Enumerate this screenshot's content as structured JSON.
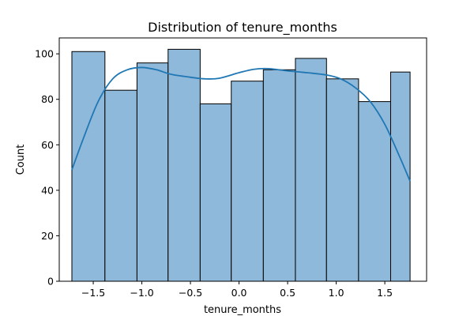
{
  "chart_data": {
    "type": "bar",
    "title": "Distribution of tenure_months",
    "xlabel": "tenure_months",
    "ylabel": "Count",
    "xlim": [
      -1.85,
      1.93
    ],
    "ylim": [
      0,
      107
    ],
    "bin_edges": [
      -1.72,
      -1.38,
      -1.05,
      -0.73,
      -0.4,
      -0.08,
      0.25,
      0.58,
      0.9,
      1.23,
      1.56,
      1.76
    ],
    "values": [
      101,
      84,
      96,
      102,
      78,
      88,
      93,
      98,
      89,
      79,
      92
    ],
    "kde": {
      "x": [
        -1.72,
        -1.6,
        -1.45,
        -1.3,
        -1.15,
        -1.0,
        -0.85,
        -0.7,
        -0.5,
        -0.35,
        -0.2,
        0.0,
        0.15,
        0.3,
        0.5,
        0.7,
        0.9,
        1.05,
        1.2,
        1.35,
        1.5,
        1.65,
        1.76
      ],
      "y": [
        49,
        63,
        79,
        89,
        93,
        94,
        93,
        91,
        89.7,
        89,
        89.3,
        91.7,
        93.2,
        93.5,
        92.5,
        91.7,
        90.7,
        88.9,
        85,
        79,
        69,
        55,
        44
      ]
    },
    "xticks": [
      -1.5,
      -1.0,
      -0.5,
      0.0,
      0.5,
      1.0,
      1.5
    ],
    "xtick_labels": [
      "−1.5",
      "−1.0",
      "−0.5",
      "0.0",
      "0.5",
      "1.0",
      "1.5"
    ],
    "yticks": [
      0,
      20,
      40,
      60,
      80,
      100
    ],
    "ytick_labels": [
      "0",
      "20",
      "40",
      "60",
      "80",
      "100"
    ],
    "grid": false,
    "colors": {
      "bar_fill": "#8fb9da",
      "bar_edge": "#000000",
      "kde_line": "#1f77b4",
      "axes": "#000000"
    }
  }
}
